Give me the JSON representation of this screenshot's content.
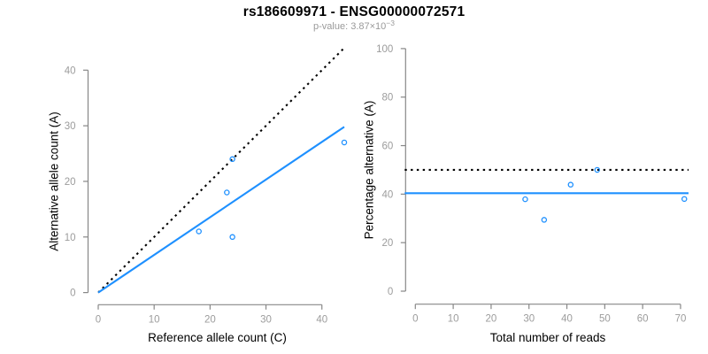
{
  "header": {
    "title": "rs186609971 - ENSG00000072571",
    "subtitle_prefix": "p-value: ",
    "subtitle_base": "3.87×10",
    "subtitle_exponent": "−3"
  },
  "colors": {
    "accent_blue": "#1e90ff",
    "dotted_black": "#000000",
    "axis_line": "#878787",
    "tick_label": "#9c9c9c",
    "axis_title": "#000000",
    "subtitle_gray": "#9a9a9a",
    "background": "#ffffff"
  },
  "chart_data": [
    {
      "type": "scatter",
      "name": "allele-count-scatter",
      "xlabel": "Reference allele count (C)",
      "ylabel": "Alternative allele count (A)",
      "xlim": [
        0,
        44
      ],
      "ylim": [
        0,
        44
      ],
      "xticks": [
        0,
        10,
        20,
        30,
        40
      ],
      "yticks": [
        0,
        10,
        20,
        30,
        40
      ],
      "grid": false,
      "legend": "none",
      "points": [
        {
          "x": 24,
          "y": 24
        },
        {
          "x": 23,
          "y": 18
        },
        {
          "x": 18,
          "y": 11
        },
        {
          "x": 24,
          "y": 10
        },
        {
          "x": 44,
          "y": 27
        }
      ],
      "lines": [
        {
          "name": "identity-line",
          "style": "dotted",
          "color": "#000000",
          "x1": 0,
          "y1": 0,
          "x2": 44,
          "y2": 44
        },
        {
          "name": "regression-line",
          "style": "solid",
          "color": "#1e90ff",
          "x1": 0,
          "y1": 0,
          "x2": 44,
          "y2": 29.8
        }
      ]
    },
    {
      "type": "scatter",
      "name": "percentage-scatter",
      "xlabel": "Total number of reads",
      "ylabel": "Percentage alternative (A)",
      "xlim": [
        0,
        71
      ],
      "ylim": [
        0,
        100
      ],
      "xticks": [
        0,
        10,
        20,
        30,
        40,
        50,
        60,
        70
      ],
      "yticks": [
        0,
        20,
        40,
        60,
        80,
        100
      ],
      "grid": false,
      "legend": "none",
      "points": [
        {
          "x": 29,
          "y": 37.9
        },
        {
          "x": 34,
          "y": 29.4
        },
        {
          "x": 41,
          "y": 43.9
        },
        {
          "x": 48,
          "y": 50.0
        },
        {
          "x": 71,
          "y": 38.0
        }
      ],
      "lines": [
        {
          "name": "fifty-percent-line",
          "style": "dotted",
          "color": "#000000",
          "hline": 50
        },
        {
          "name": "mean-percentage-line",
          "style": "solid",
          "color": "#1e90ff",
          "hline": 40.4
        }
      ]
    }
  ]
}
